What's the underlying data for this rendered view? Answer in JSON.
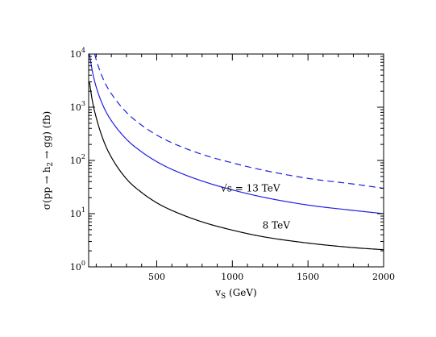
{
  "chart_data": {
    "type": "line",
    "title": "",
    "xlabel": "v_S (GeV)",
    "xlabel_main": "v",
    "xlabel_sub": "S",
    "xlabel_unit": " (GeV)",
    "ylabel": "σ(pp → h_2 → gg) (fb)",
    "ylabel_parts": {
      "pre": "σ(pp → h",
      "sub": "2",
      "post": " → gg) (fb)"
    },
    "xlim": [
      50,
      2000
    ],
    "ylim": [
      1,
      10000
    ],
    "yscale": "log",
    "grid": false,
    "x_ticks": [
      500,
      1000,
      1500,
      2000
    ],
    "x_tick_labels": [
      "500",
      "1000",
      "1500",
      "2000"
    ],
    "y_ticks": [
      1,
      10,
      100,
      1000,
      10000
    ],
    "y_tick_labels": [
      {
        "base": "10",
        "exp": "0"
      },
      {
        "base": "10",
        "exp": "1"
      },
      {
        "base": "10",
        "exp": "2"
      },
      {
        "base": "10",
        "exp": "3"
      },
      {
        "base": "10",
        "exp": "4"
      }
    ],
    "series": [
      {
        "key": "8tev",
        "color": "#000000",
        "dash": "solid",
        "x": [
          55,
          75,
          100,
          150,
          200,
          300,
          400,
          500,
          600,
          800,
          1000,
          1200,
          1500,
          1800,
          2000
        ],
        "y": [
          3000,
          1300,
          640,
          230,
          115,
          45,
          25,
          16,
          11.5,
          7,
          4.9,
          3.7,
          2.8,
          2.3,
          2.1
        ]
      },
      {
        "key": "13tev",
        "color": "#1f1fe0",
        "dash": "solid",
        "x": [
          55,
          75,
          100,
          150,
          200,
          300,
          400,
          500,
          600,
          800,
          1000,
          1200,
          1500,
          1800,
          2000
        ],
        "y": [
          10000,
          4700,
          2400,
          1000,
          560,
          250,
          145,
          95,
          68,
          41,
          28,
          20.5,
          14.5,
          11.5,
          10
        ]
      },
      {
        "key": "13tev-dashed",
        "color": "#1f1fe0",
        "dash": "dashed",
        "x": [
          90,
          100,
          150,
          200,
          300,
          400,
          500,
          600,
          800,
          1000,
          1200,
          1500,
          1800,
          2000
        ],
        "y": [
          10000,
          7800,
          3200,
          1800,
          800,
          460,
          300,
          215,
          130,
          90,
          66,
          46,
          36,
          30
        ]
      }
    ],
    "annotations": [
      {
        "key": "13tev-label",
        "text": "√s = 13 TeV",
        "at_x": 1120,
        "at_y": 26
      },
      {
        "key": "8tev-label",
        "text": "8 TeV",
        "at_x": 1290,
        "at_y": 5.2
      }
    ]
  }
}
